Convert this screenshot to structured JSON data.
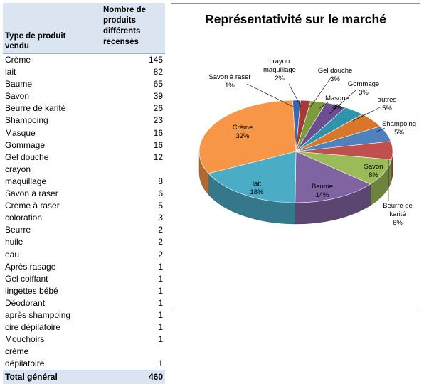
{
  "table": {
    "header_type": "Type de produit vendu",
    "header_count": "Nombre de produits différents recensés",
    "rows": [
      {
        "label": "Crème",
        "value": "145"
      },
      {
        "label": "lait",
        "value": "82"
      },
      {
        "label": "Baume",
        "value": "65"
      },
      {
        "label": "Savon",
        "value": "39"
      },
      {
        "label": "Beurre de karité",
        "value": "26"
      },
      {
        "label": "Shampoing",
        "value": "23"
      },
      {
        "label": "Masque",
        "value": "16"
      },
      {
        "label": "Gommage",
        "value": "16"
      },
      {
        "label": "Gel douche",
        "value": "12"
      },
      {
        "label": "crayon maquillage",
        "value": "8"
      },
      {
        "label": "Savon à raser",
        "value": "6"
      },
      {
        "label": "Crème à raser",
        "value": "5"
      },
      {
        "label": "coloration",
        "value": "3"
      },
      {
        "label": "Beurre",
        "value": "2"
      },
      {
        "label": "huile",
        "value": "2"
      },
      {
        "label": "eau",
        "value": "2"
      },
      {
        "label": "Après rasage",
        "value": "1"
      },
      {
        "label": "Gel coiffant",
        "value": "1"
      },
      {
        "label": "lingettes bébé",
        "value": "1"
      },
      {
        "label": "Déodorant",
        "value": "1"
      },
      {
        "label": "après shampoing",
        "value": "1"
      },
      {
        "label": "cire dépilatoire",
        "value": "1"
      },
      {
        "label": "Mouchoirs",
        "value": "1"
      },
      {
        "label": "crème dépilatoire",
        "value": "1"
      }
    ],
    "total_label": "Total général",
    "total_value": "460"
  },
  "chart_data": {
    "type": "pie",
    "title": "Représentativité sur le marché",
    "legend": "none",
    "slices": [
      {
        "name": "Savon à raser",
        "label": "1%",
        "value": 1.3,
        "color": "#3b68b0"
      },
      {
        "name": "crayon maquillage",
        "label": "2%",
        "value": 1.7,
        "color": "#a33b38"
      },
      {
        "name": "Gel douche",
        "label": "3%",
        "value": 2.6,
        "color": "#7d9a3c"
      },
      {
        "name": "Masque",
        "label": "3%",
        "value": 3.5,
        "color": "#6a4e8f"
      },
      {
        "name": "Gommage",
        "label": "3%",
        "value": 3.5,
        "color": "#2f93ad"
      },
      {
        "name": "autres",
        "label": "5%",
        "value": 4.8,
        "color": "#d8772b"
      },
      {
        "name": "Shampoing",
        "label": "5%",
        "value": 5.0,
        "color": "#4f81bd"
      },
      {
        "name": "Beurre de karité",
        "label": "6%",
        "value": 5.7,
        "color": "#c0504d"
      },
      {
        "name": "Savon",
        "label": "8%",
        "value": 8.5,
        "color": "#9bbb59"
      },
      {
        "name": "Baume",
        "label": "14%",
        "value": 14.1,
        "color": "#8064a2"
      },
      {
        "name": "lait",
        "label": "18%",
        "value": 17.8,
        "color": "#4bacc6"
      },
      {
        "name": "Crème",
        "label": "32%",
        "value": 31.5,
        "color": "#f79646"
      }
    ]
  }
}
